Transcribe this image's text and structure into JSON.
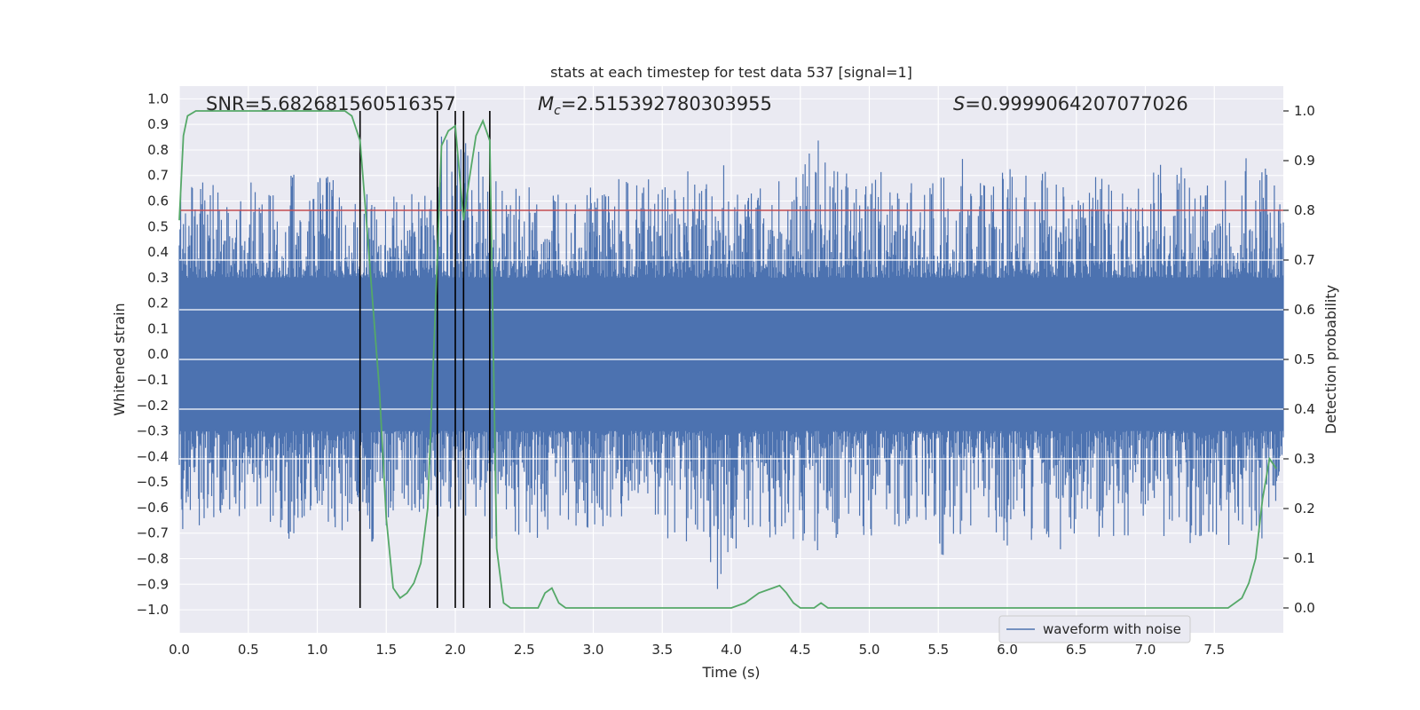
{
  "chart_data": {
    "type": "line",
    "title": "stats at each timestep for test data 537 [signal=1]",
    "xlabel": "Time (s)",
    "ylabel": "Whitened strain",
    "y2label": "Detection probability",
    "xlim": [
      0.0,
      8.0
    ],
    "ylim": [
      -1.09,
      1.05
    ],
    "y2lim": [
      -0.05,
      1.05
    ],
    "x_ticks": [
      "0.0",
      "0.5",
      "1.0",
      "1.5",
      "2.0",
      "2.5",
      "3.0",
      "3.5",
      "4.0",
      "4.5",
      "5.0",
      "5.5",
      "6.0",
      "6.5",
      "7.0",
      "7.5"
    ],
    "x_tick_values": [
      0.0,
      0.5,
      1.0,
      1.5,
      2.0,
      2.5,
      3.0,
      3.5,
      4.0,
      4.5,
      5.0,
      5.5,
      6.0,
      6.5,
      7.0,
      7.5
    ],
    "y_ticks": [
      "1.0",
      "0.9",
      "0.8",
      "0.7",
      "0.6",
      "0.5",
      "0.4",
      "0.3",
      "0.2",
      "0.1",
      "0.0",
      "−0.1",
      "−0.2",
      "−0.3",
      "−0.4",
      "−0.5",
      "−0.6",
      "−0.7",
      "−0.8",
      "−0.9",
      "−1.0"
    ],
    "y_tick_values": [
      1.0,
      0.9,
      0.8,
      0.7,
      0.6,
      0.5,
      0.4,
      0.3,
      0.2,
      0.1,
      0.0,
      -0.1,
      -0.2,
      -0.3,
      -0.4,
      -0.5,
      -0.6,
      -0.7,
      -0.8,
      -0.9,
      -1.0
    ],
    "y2_ticks": [
      "1.0",
      "0.9",
      "0.8",
      "0.7",
      "0.6",
      "0.5",
      "0.4",
      "0.3",
      "0.2",
      "0.1",
      "0.0"
    ],
    "y2_tick_values": [
      1.0,
      0.9,
      0.8,
      0.7,
      0.6,
      0.5,
      0.4,
      0.3,
      0.2,
      0.1,
      0.0
    ],
    "grid": true,
    "legend_position": "bottom-right",
    "annotations": {
      "snr": "SNR=5.682681560516357",
      "mc_symbol": "M",
      "mc_sub": "c",
      "mc_value": "=2.515392780303955",
      "s_symbol": "S",
      "s_value": "=0.9999064207077026"
    },
    "threshold_line": {
      "axis": "right",
      "value": 0.8,
      "color": "#c44e52"
    },
    "vertical_lines": [
      1.31,
      1.87,
      2.0,
      2.06,
      2.25
    ],
    "series": [
      {
        "name": "waveform with noise",
        "axis": "left",
        "color": "#4c72b0",
        "envelope": {
          "x": [
            0.0,
            0.1,
            0.2,
            0.3,
            0.4,
            0.5,
            0.6,
            0.7,
            0.8,
            0.9,
            1.0,
            1.1,
            1.2,
            1.3,
            1.4,
            1.5,
            1.6,
            1.7,
            1.8,
            1.9,
            2.0,
            2.1,
            2.2,
            2.3,
            2.4,
            2.5,
            2.6,
            2.7,
            2.8,
            2.9,
            3.0,
            3.1,
            3.2,
            3.3,
            3.4,
            3.5,
            3.6,
            3.7,
            3.8,
            3.9,
            4.0,
            4.1,
            4.2,
            4.3,
            4.4,
            4.5,
            4.6,
            4.7,
            4.8,
            4.9,
            5.0,
            5.1,
            5.2,
            5.3,
            5.4,
            5.5,
            5.6,
            5.7,
            5.8,
            5.9,
            6.0,
            6.1,
            6.2,
            6.3,
            6.4,
            6.5,
            6.6,
            6.7,
            6.8,
            6.9,
            7.0,
            7.1,
            7.2,
            7.3,
            7.4,
            7.5,
            7.6,
            7.7,
            7.8,
            7.9,
            8.0
          ],
          "upper": [
            0.66,
            0.66,
            0.69,
            0.66,
            0.63,
            0.68,
            0.65,
            0.68,
            0.74,
            0.66,
            0.71,
            0.7,
            0.65,
            0.66,
            0.64,
            0.68,
            0.57,
            0.67,
            0.71,
            0.88,
            0.82,
            0.87,
            0.79,
            0.7,
            0.66,
            0.66,
            0.65,
            0.63,
            0.63,
            0.66,
            0.66,
            0.64,
            0.7,
            0.65,
            0.76,
            0.65,
            0.68,
            0.76,
            0.72,
            0.78,
            0.73,
            0.78,
            0.71,
            0.69,
            0.71,
            0.69,
            0.98,
            0.78,
            0.72,
            0.73,
            0.72,
            0.73,
            0.66,
            0.68,
            0.7,
            0.69,
            0.71,
            0.81,
            0.71,
            0.69,
            0.73,
            0.77,
            0.66,
            0.78,
            0.73,
            0.77,
            0.67,
            0.82,
            0.69,
            0.63,
            0.69,
            0.78,
            0.74,
            0.8,
            0.69,
            0.68,
            0.73,
            0.83,
            0.73,
            0.76,
            0.6
          ],
          "lower": [
            -0.72,
            -0.71,
            -0.64,
            -0.66,
            -0.68,
            -0.66,
            -0.66,
            -0.72,
            -0.77,
            -0.65,
            -0.66,
            -0.72,
            -0.69,
            -0.63,
            -0.74,
            -0.67,
            -0.65,
            -0.61,
            -0.69,
            -0.65,
            -0.72,
            -0.66,
            -0.7,
            -0.76,
            -0.67,
            -0.77,
            -0.74,
            -0.68,
            -0.65,
            -0.72,
            -0.67,
            -0.69,
            -0.69,
            -0.68,
            -0.7,
            -0.72,
            -0.75,
            -0.74,
            -0.72,
            -0.93,
            -0.76,
            -0.78,
            -0.71,
            -0.73,
            -0.71,
            -0.79,
            -0.78,
            -0.74,
            -0.75,
            -0.73,
            -0.72,
            -0.73,
            -0.68,
            -0.79,
            -0.75,
            -0.8,
            -0.78,
            -0.71,
            -0.7,
            -0.72,
            -0.75,
            -0.7,
            -0.74,
            -0.77,
            -0.79,
            -0.74,
            -0.76,
            -0.73,
            -0.73,
            -0.73,
            -0.69,
            -0.72,
            -0.74,
            -0.77,
            -0.75,
            -0.74,
            -0.76,
            -0.69,
            -0.75,
            -0.7,
            -0.56
          ]
        }
      },
      {
        "name": "",
        "axis": "right",
        "color": "#55a868",
        "x": [
          0.0,
          0.03,
          0.06,
          0.12,
          0.2,
          0.4,
          0.6,
          0.8,
          1.0,
          1.1,
          1.2,
          1.25,
          1.31,
          1.35,
          1.4,
          1.45,
          1.5,
          1.55,
          1.6,
          1.65,
          1.7,
          1.75,
          1.8,
          1.85,
          1.9,
          1.95,
          2.0,
          2.06,
          2.1,
          2.15,
          2.2,
          2.25,
          2.3,
          2.35,
          2.4,
          2.5,
          2.6,
          2.65,
          2.7,
          2.75,
          2.8,
          2.9,
          3.0,
          3.1,
          3.3,
          3.5,
          3.7,
          3.8,
          3.9,
          4.0,
          4.1,
          4.2,
          4.3,
          4.35,
          4.4,
          4.45,
          4.5,
          4.6,
          4.65,
          4.7,
          4.8,
          4.9,
          5.0,
          5.5,
          5.8,
          6.0,
          6.2,
          6.5,
          6.7,
          6.8,
          7.0,
          7.2,
          7.4,
          7.5,
          7.6,
          7.7,
          7.75,
          7.8,
          7.85,
          7.9,
          7.95
        ],
        "values": [
          0.78,
          0.95,
          0.99,
          1.0,
          1.0,
          1.0,
          1.0,
          1.0,
          1.0,
          1.0,
          1.0,
          0.99,
          0.94,
          0.8,
          0.62,
          0.44,
          0.18,
          0.04,
          0.02,
          0.03,
          0.05,
          0.09,
          0.2,
          0.56,
          0.93,
          0.96,
          0.97,
          0.78,
          0.86,
          0.95,
          0.98,
          0.94,
          0.12,
          0.01,
          0.0,
          0.0,
          0.0,
          0.03,
          0.04,
          0.01,
          0.0,
          0.0,
          0.0,
          0.0,
          0.0,
          0.0,
          0.0,
          0.0,
          0.0,
          0.0,
          0.01,
          0.03,
          0.04,
          0.045,
          0.03,
          0.01,
          0.0,
          0.0,
          0.01,
          0.0,
          0.0,
          0.0,
          0.0,
          0.0,
          0.0,
          0.0,
          0.0,
          0.0,
          0.0,
          0.0,
          0.0,
          0.0,
          0.0,
          0.0,
          0.0,
          0.02,
          0.05,
          0.1,
          0.22,
          0.3,
          0.28
        ]
      }
    ]
  }
}
